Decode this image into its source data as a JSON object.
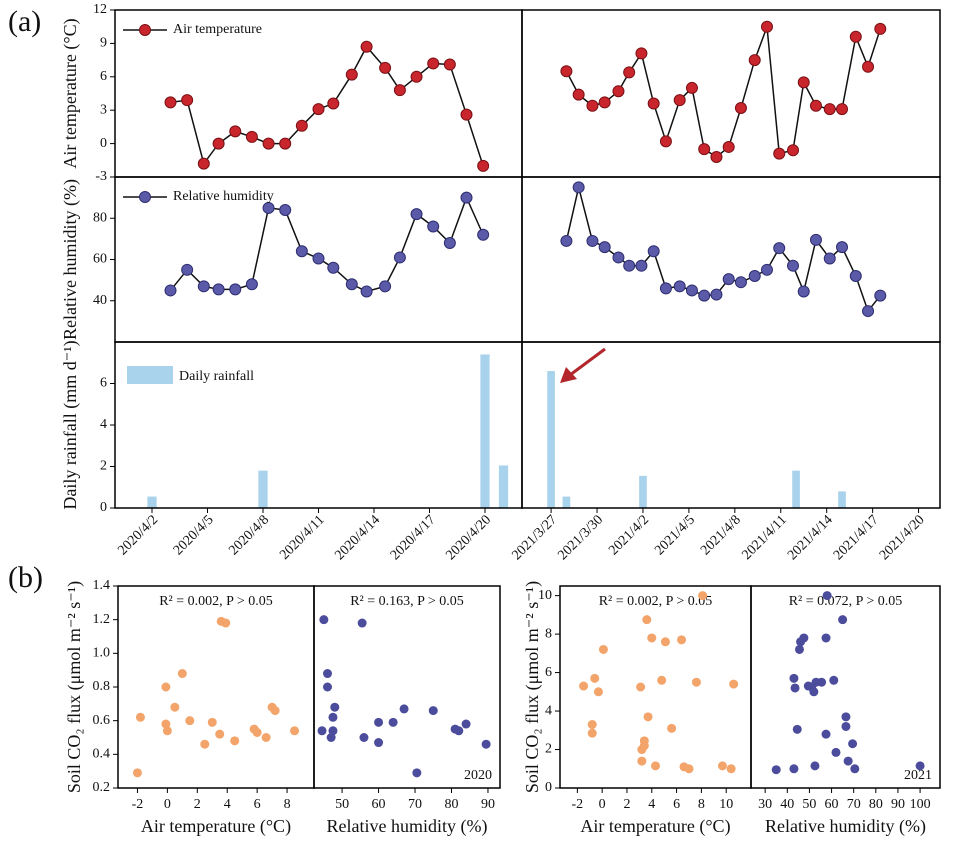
{
  "panel_labels": [
    "(a)",
    "(b)"
  ],
  "chart_data": [
    {
      "type": "line",
      "ylabel": "Air temperature (°C)",
      "xlim": [
        0,
        22
      ],
      "ylim": [
        -3,
        12
      ],
      "yticks": [
        12,
        9,
        6,
        3,
        0,
        -3
      ],
      "legend": "upper left",
      "x": [
        3.0,
        3.9,
        4.8,
        5.6,
        6.5,
        7.4,
        8.3,
        9.2,
        10.1,
        11.0,
        11.8,
        12.8,
        13.6,
        14.6,
        15.4,
        16.3,
        17.2,
        18.1,
        19.0,
        19.9
      ],
      "series": [
        {
          "name": "Air temperature",
          "color": "#c8262c",
          "values": [
            3.7,
            3.9,
            -1.8,
            0.0,
            1.1,
            0.6,
            0.0,
            0.0,
            1.6,
            3.1,
            3.6,
            6.2,
            8.7,
            6.8,
            4.8,
            6.0,
            7.2,
            7.1,
            2.6,
            -2.0
          ]
        }
      ]
    },
    {
      "type": "line",
      "xlim": [
        25.1,
        52.4
      ],
      "ylim": [
        -3,
        12
      ],
      "x": [
        28.0,
        28.8,
        29.7,
        30.5,
        31.4,
        32.1,
        32.9,
        33.7,
        34.5,
        35.4,
        36.2,
        37.0,
        37.8,
        38.6,
        39.4,
        40.3,
        41.1,
        41.9,
        42.8,
        43.5,
        44.3,
        45.2,
        46.0,
        46.9,
        47.7,
        48.5
      ],
      "series": [
        {
          "color": "#c8262c",
          "values": [
            6.5,
            4.4,
            3.4,
            3.7,
            4.7,
            6.4,
            8.1,
            3.6,
            0.2,
            3.9,
            5.0,
            -0.5,
            -1.2,
            -0.3,
            3.2,
            7.5,
            10.5,
            -0.9,
            -0.6,
            5.5,
            3.4,
            3.1,
            3.1,
            9.6,
            6.9,
            10.3
          ]
        }
      ]
    },
    {
      "type": "line",
      "ylabel": "Relative humidity (%)",
      "xlim": [
        0,
        22
      ],
      "ylim": [
        20,
        100
      ],
      "yticks": [
        80,
        60,
        40
      ],
      "legend": "upper left",
      "x": [
        3.0,
        3.9,
        4.8,
        5.6,
        6.5,
        7.4,
        8.3,
        9.2,
        10.1,
        11.0,
        11.8,
        12.8,
        13.6,
        14.6,
        15.4,
        16.3,
        17.2,
        18.1,
        19.0,
        19.9
      ],
      "series": [
        {
          "name": "Relative humidity",
          "color": "#5a5aa8",
          "values": [
            45,
            55,
            47,
            45.5,
            45.5,
            48,
            85,
            84,
            64,
            60.5,
            56,
            48,
            44.5,
            47,
            61,
            82,
            76,
            68,
            90,
            72
          ]
        }
      ]
    },
    {
      "type": "line",
      "xlim": [
        25.1,
        52.4
      ],
      "ylim": [
        20,
        100
      ],
      "x": [
        28.0,
        28.8,
        29.7,
        30.5,
        31.4,
        32.1,
        32.9,
        33.7,
        34.5,
        35.4,
        36.2,
        37.0,
        37.8,
        38.6,
        39.4,
        40.3,
        41.1,
        41.9,
        42.8,
        43.5,
        44.3,
        45.2,
        46.0,
        46.9,
        47.7,
        48.5
      ],
      "series": [
        {
          "color": "#5a5aa8",
          "values": [
            69,
            95,
            69,
            66,
            61,
            57,
            57,
            64,
            46,
            47,
            45,
            42.5,
            43,
            50.5,
            49,
            52,
            55,
            65.5,
            57,
            44.5,
            69.5,
            60.5,
            66,
            52,
            35,
            42.5
          ]
        }
      ]
    },
    {
      "type": "bar",
      "ylabel": "Daily rainfall (mm d⁻¹)",
      "xlim": [
        0,
        22
      ],
      "ylim": [
        0,
        8
      ],
      "yticks": [
        6,
        4,
        2,
        0
      ],
      "legend": "upper left",
      "xtick_rotation": -45,
      "xticks": [
        {
          "value": 2,
          "label": "2020/4/2"
        },
        {
          "value": 5,
          "label": "2020/4/5"
        },
        {
          "value": 8,
          "label": "2020/4/8"
        },
        {
          "value": 11,
          "label": "2020/4/11"
        },
        {
          "value": 14,
          "label": "2020/4/14"
        },
        {
          "value": 17,
          "label": "2020/4/17"
        },
        {
          "value": 20,
          "label": "2020/4/20"
        }
      ],
      "x": [
        2,
        8,
        20,
        21
      ],
      "name": "Daily rainfall",
      "color": "#a9d2ec",
      "values": [
        0.55,
        1.8,
        7.4,
        2.05
      ]
    },
    {
      "type": "bar",
      "xlim": [
        25.1,
        52.4
      ],
      "ylim": [
        0,
        8
      ],
      "xtick_rotation": -45,
      "xticks": [
        {
          "value": 27,
          "label": "2021/3/27"
        },
        {
          "value": 30,
          "label": "2021/3/30"
        },
        {
          "value": 33,
          "label": "2021/4/2"
        },
        {
          "value": 36,
          "label": "2021/4/5"
        },
        {
          "value": 39,
          "label": "2021/4/8"
        },
        {
          "value": 42,
          "label": "2021/4/11"
        },
        {
          "value": 45,
          "label": "2021/4/14"
        },
        {
          "value": 48,
          "label": "2021/4/17"
        },
        {
          "value": 51,
          "label": "2021/4/20"
        }
      ],
      "x": [
        27,
        28,
        33,
        43,
        46
      ],
      "color": "#a9d2ec",
      "values": [
        6.6,
        0.55,
        1.55,
        1.8,
        0.8
      ]
    },
    {
      "type": "scatter",
      "ylabel": "Soil CO₂ flux (μmol m⁻² s⁻¹)",
      "xlabel": "Air temperature (°C)",
      "annotation": "R² = 0.002, P > 0.05",
      "xlim": [
        -3.3,
        9.8
      ],
      "ylim": [
        0.2,
        1.4
      ],
      "xticks": [
        -2,
        0,
        2,
        4,
        6,
        8
      ],
      "yticks": [
        0.2,
        0.4,
        0.6,
        0.8,
        {
          "value": 1,
          "label": "1.0"
        },
        1.2,
        1.4
      ],
      "series": [
        {
          "color": "#f2a46a",
          "x": [
            -2,
            -1.8,
            -0.1,
            -0.1,
            0,
            0.5,
            1.0,
            1.5,
            2.5,
            3.0,
            3.5,
            3.6,
            3.9,
            4.5,
            5.8,
            6.0,
            6.6,
            7.0,
            7.2,
            8.5
          ],
          "y": [
            0.29,
            0.62,
            0.8,
            0.58,
            0.54,
            0.68,
            0.88,
            0.6,
            0.46,
            0.59,
            0.52,
            1.19,
            1.18,
            0.48,
            0.55,
            0.53,
            0.5,
            0.68,
            0.66,
            0.54
          ]
        }
      ]
    },
    {
      "type": "scatter",
      "xlabel": "Relative humidity (%)",
      "annotation": "R² = 0.163, P > 0.05",
      "note": "2020",
      "xlim": [
        42.3,
        93.3
      ],
      "ylim": [
        0.2,
        1.4
      ],
      "xticks": [
        50,
        60,
        70,
        80,
        90
      ],
      "series": [
        {
          "color": "#4c4c9c",
          "x": [
            45,
            46,
            46,
            44.5,
            47,
            47.5,
            47.5,
            48,
            55.5,
            56,
            60,
            60,
            64,
            67,
            70.5,
            75,
            81,
            82,
            84,
            89.5
          ],
          "y": [
            1.2,
            0.88,
            0.8,
            0.54,
            0.5,
            0.62,
            0.54,
            0.68,
            1.18,
            0.5,
            0.59,
            0.47,
            0.59,
            0.67,
            0.29,
            0.66,
            0.55,
            0.54,
            0.58,
            0.46
          ]
        }
      ]
    },
    {
      "type": "scatter",
      "ylabel": "Soil CO₂ flux (μmol m⁻² s⁻¹)",
      "xlabel": "Air temperature (°C)",
      "annotation": "R² = 0.002, P > 0.05",
      "xlim": [
        -3.4,
        12.0
      ],
      "ylim": [
        0,
        10.5
      ],
      "xticks": [
        -2,
        0,
        2,
        4,
        6,
        8,
        10
      ],
      "yticks": [
        0,
        2,
        4,
        6,
        8,
        10
      ],
      "series": [
        {
          "color": "#f2a46a",
          "x": [
            -1.5,
            -0.8,
            -0.8,
            -0.6,
            -0.3,
            0.1,
            3.1,
            3.2,
            3.2,
            3.4,
            3.4,
            3.6,
            3.7,
            4.0,
            4.3,
            4.8,
            5.1,
            5.6,
            6.4,
            6.6,
            7.0,
            7.6,
            8.1,
            9.7,
            10.4,
            10.6
          ],
          "y": [
            5.3,
            3.3,
            2.85,
            5.7,
            5.0,
            7.2,
            5.25,
            2.0,
            1.4,
            2.45,
            2.2,
            8.75,
            3.7,
            7.8,
            1.15,
            5.6,
            7.6,
            3.1,
            7.7,
            1.1,
            1.0,
            5.5,
            10.0,
            1.15,
            1.0,
            5.4
          ]
        }
      ]
    },
    {
      "type": "scatter",
      "xlabel": "Relative humidity (%)",
      "annotation": "R² = 0.072, P > 0.05",
      "note": "2021",
      "xlim": [
        23.6,
        109
      ],
      "ylim": [
        0,
        10.5
      ],
      "xticks": [
        30,
        40,
        50,
        60,
        70,
        80,
        90,
        100
      ],
      "series": [
        {
          "color": "#4c4c9c",
          "x": [
            35,
            43,
            43,
            43.5,
            44.5,
            46,
            45.5,
            47.5,
            49.5,
            51,
            52,
            52.5,
            53,
            55.5,
            57.5,
            57.5,
            58,
            61,
            62,
            65,
            66.5,
            66.5,
            67.5,
            69.5,
            70.5,
            100
          ],
          "y": [
            0.95,
            1.0,
            5.7,
            5.2,
            3.05,
            7.6,
            7.2,
            7.8,
            5.3,
            5.25,
            5.0,
            1.15,
            5.5,
            5.5,
            7.8,
            2.8,
            10.0,
            5.6,
            1.85,
            8.75,
            3.7,
            3.2,
            1.4,
            2.3,
            1.0,
            1.15
          ]
        }
      ]
    }
  ]
}
